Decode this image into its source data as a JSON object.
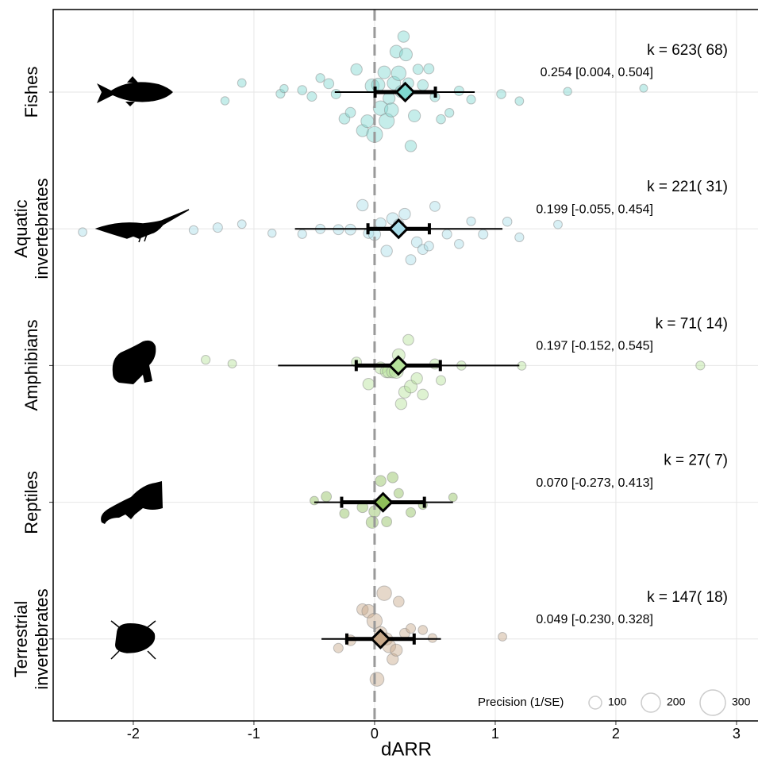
{
  "chart_data": {
    "type": "orchard",
    "x_label": "dARR",
    "categories": [
      "Fishes",
      "Aquatic\ninvertebrates",
      "Amphibians",
      "Reptiles",
      "Terrestrial\ninvertebrates"
    ],
    "colors": [
      "#7fd8d0",
      "#a9dde9",
      "#b5e29a",
      "#8fbf5a",
      "#c8a98a"
    ],
    "estimates": [
      0.254,
      0.199,
      0.197,
      0.07,
      0.049
    ],
    "ci_low": [
      0.004,
      -0.055,
      -0.152,
      -0.273,
      -0.23
    ],
    "ci_high": [
      0.504,
      0.454,
      0.545,
      0.413,
      0.328
    ],
    "pi_low": [
      -0.33,
      -0.66,
      -0.8,
      -0.5,
      -0.44
    ],
    "pi_high": [
      0.83,
      1.06,
      1.2,
      0.65,
      0.55
    ],
    "estimate_labels": [
      "0.254 [0.004, 0.504]",
      "0.199 [-0.055, 0.454]",
      "0.197 [-0.152, 0.545]",
      "0.070 [-0.273, 0.413]",
      "0.049 [-0.230, 0.328]"
    ],
    "k_labels": [
      "k = 623( 68)",
      "k = 221( 31)",
      "k = 71( 14)",
      "k = 27( 7)",
      "k = 147( 18)"
    ],
    "points": [
      {
        "x": [
          -1.24,
          -1.1,
          -0.78,
          -0.75,
          -0.6,
          -0.52,
          -0.45,
          -0.38,
          -0.32,
          -0.25,
          -0.2,
          -0.15,
          -0.1,
          -0.06,
          -0.02,
          0.0,
          0.03,
          0.05,
          0.08,
          0.1,
          0.12,
          0.14,
          0.16,
          0.18,
          0.2,
          0.22,
          0.24,
          0.26,
          0.28,
          0.3,
          0.33,
          0.36,
          0.4,
          0.45,
          0.5,
          0.55,
          0.62,
          0.7,
          0.8,
          1.05,
          1.2,
          1.6,
          2.23
        ],
        "precision": [
          30,
          35,
          40,
          30,
          45,
          50,
          40,
          60,
          50,
          70,
          60,
          80,
          90,
          100,
          120,
          150,
          110,
          130,
          100,
          140,
          90,
          120,
          110,
          100,
          130,
          90,
          80,
          100,
          70,
          80,
          90,
          60,
          70,
          60,
          50,
          45,
          40,
          50,
          40,
          45,
          35,
          30,
          25
        ]
      },
      {
        "x": [
          -2.42,
          -1.5,
          -1.3,
          -1.1,
          -0.85,
          -0.6,
          -0.45,
          -0.3,
          -0.2,
          -0.1,
          -0.05,
          0.0,
          0.05,
          0.1,
          0.15,
          0.2,
          0.25,
          0.3,
          0.35,
          0.4,
          0.45,
          0.5,
          0.6,
          0.7,
          0.8,
          0.9,
          1.1,
          1.2,
          1.52
        ],
        "precision": [
          35,
          40,
          50,
          35,
          30,
          40,
          50,
          60,
          70,
          80,
          60,
          90,
          70,
          80,
          90,
          70,
          80,
          60,
          70,
          60,
          50,
          60,
          50,
          45,
          40,
          50,
          45,
          40,
          35
        ]
      },
      {
        "x": [
          -1.4,
          -1.18,
          -0.15,
          -0.05,
          0.05,
          0.1,
          0.12,
          0.15,
          0.18,
          0.2,
          0.22,
          0.25,
          0.28,
          0.3,
          0.35,
          0.4,
          0.5,
          0.55,
          0.72,
          1.22,
          2.7
        ],
        "precision": [
          40,
          35,
          60,
          80,
          90,
          100,
          110,
          90,
          120,
          100,
          80,
          90,
          70,
          100,
          80,
          70,
          60,
          50,
          45,
          35,
          40
        ]
      },
      {
        "x": [
          -0.5,
          -0.4,
          -0.25,
          -0.1,
          -0.02,
          0.0,
          0.05,
          0.1,
          0.15,
          0.2,
          0.3,
          0.4,
          0.65
        ],
        "precision": [
          35,
          60,
          50,
          70,
          90,
          80,
          70,
          60,
          70,
          50,
          50,
          40,
          35
        ]
      },
      {
        "x": [
          -0.3,
          -0.2,
          -0.1,
          -0.05,
          0.0,
          0.02,
          0.05,
          0.08,
          0.1,
          0.12,
          0.15,
          0.18,
          0.2,
          0.25,
          0.3,
          0.4,
          0.48,
          1.06
        ],
        "precision": [
          50,
          70,
          80,
          110,
          140,
          120,
          100,
          130,
          90,
          110,
          80,
          90,
          70,
          60,
          50,
          45,
          40,
          35
        ]
      }
    ],
    "xlim": [
      -2.664,
      3.178
    ],
    "xticks": [
      -2,
      -1,
      0,
      1,
      2,
      3
    ],
    "vline": 0,
    "grid": true,
    "size_legend": {
      "title": "Precision (1/SE)",
      "values": [
        100,
        200,
        300
      ]
    }
  }
}
